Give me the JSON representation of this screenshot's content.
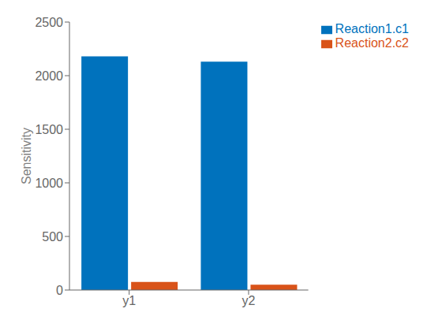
{
  "chart_data": {
    "type": "bar",
    "categories": [
      "y1",
      "y2"
    ],
    "series": [
      {
        "name": "Reaction1.c1",
        "color": "#0072BD",
        "values": [
          2180,
          2130
        ]
      },
      {
        "name": "Reaction2.c2",
        "color": "#D95319",
        "values": [
          75,
          50
        ]
      }
    ],
    "ylabel": "Sensitivity",
    "ylim": [
      0,
      2500
    ],
    "yticks": [
      0,
      500,
      1000,
      1500,
      2000,
      2500
    ],
    "grid": false,
    "legend": "right"
  }
}
